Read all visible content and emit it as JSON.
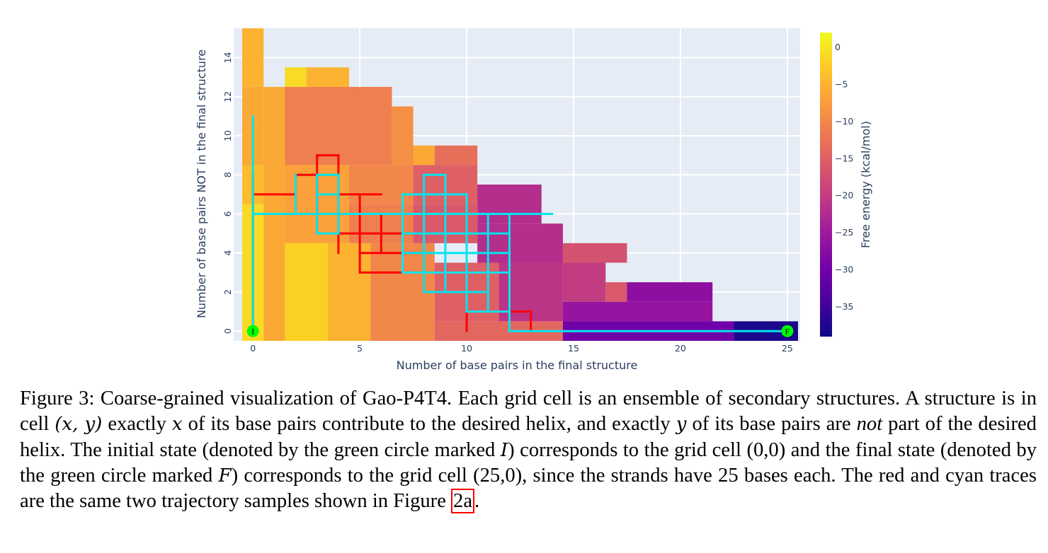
{
  "chart_data": {
    "type": "heatmap",
    "title": "",
    "xlabel": "Number of base pairs in the final structure",
    "ylabel": "Number of base pairs  NOT in the final structure",
    "colorbar_title": "Free energy (kcal/mol)",
    "xlim": [
      -0.9,
      25.6
    ],
    "ylim": [
      -0.5,
      15.5
    ],
    "xticks": [
      0,
      5,
      10,
      15,
      20,
      25
    ],
    "yticks": [
      0,
      2,
      4,
      6,
      8,
      10,
      12,
      14
    ],
    "zlim": [
      -39,
      2
    ],
    "colorbar_ticks": [
      0,
      -5,
      -10,
      -15,
      -20,
      -25,
      -30,
      -35
    ],
    "colorscale": "plasma",
    "cells": [
      {
        "x_range": [
          -0.5,
          0.5
        ],
        "y_range": [
          14.5,
          15.5
        ],
        "z": -5
      },
      {
        "x_range": [
          -0.5,
          0.5
        ],
        "y_range": [
          12.5,
          14.5
        ],
        "z": -5
      },
      {
        "x_range": [
          -0.5,
          0.5
        ],
        "y_range": [
          10.5,
          12.5
        ],
        "z": -6
      },
      {
        "x_range": [
          -0.5,
          0.5
        ],
        "y_range": [
          8.5,
          10.5
        ],
        "z": -6
      },
      {
        "x_range": [
          -0.5,
          0.5
        ],
        "y_range": [
          6.5,
          8.5
        ],
        "z": -4
      },
      {
        "x_range": [
          -0.5,
          0.5
        ],
        "y_range": [
          -0.5,
          6.5
        ],
        "z": -1
      },
      {
        "x_range": [
          0.5,
          1.5
        ],
        "y_range": [
          -0.5,
          12.5
        ],
        "z": -6
      },
      {
        "x_range": [
          1.5,
          2.5
        ],
        "y_range": [
          12.5,
          13.5
        ],
        "z": -1
      },
      {
        "x_range": [
          2.5,
          4.5
        ],
        "y_range": [
          12.5,
          13.5
        ],
        "z": -5
      },
      {
        "x_range": [
          1.5,
          6.5
        ],
        "y_range": [
          8.5,
          12.5
        ],
        "z": -11
      },
      {
        "x_range": [
          6.5,
          7.5
        ],
        "y_range": [
          8.5,
          11.5
        ],
        "z": -9
      },
      {
        "x_range": [
          7.5,
          8.5
        ],
        "y_range": [
          8.5,
          9.5
        ],
        "z": -6
      },
      {
        "x_range": [
          8.5,
          10.5
        ],
        "y_range": [
          8.5,
          9.5
        ],
        "z": -13
      },
      {
        "x_range": [
          1.5,
          4.5
        ],
        "y_range": [
          4.5,
          8.5
        ],
        "z": -7
      },
      {
        "x_range": [
          4.5,
          7.5
        ],
        "y_range": [
          6.5,
          8.5
        ],
        "z": -10
      },
      {
        "x_range": [
          7.5,
          10.5
        ],
        "y_range": [
          6.5,
          8.5
        ],
        "z": -15
      },
      {
        "x_range": [
          10.5,
          11.5
        ],
        "y_range": [
          6.5,
          7.5
        ],
        "z": -17
      },
      {
        "x_range": [
          10.5,
          13.5
        ],
        "y_range": [
          5.5,
          7.5
        ],
        "z": -22
      },
      {
        "x_range": [
          13.5,
          14.5
        ],
        "y_range": [
          4.5,
          5.5
        ],
        "z": -16
      },
      {
        "x_range": [
          4.5,
          7.5
        ],
        "y_range": [
          4.5,
          6.5
        ],
        "z": -11
      },
      {
        "x_range": [
          7.5,
          10.5
        ],
        "y_range": [
          4.5,
          6.5
        ],
        "z": -16
      },
      {
        "x_range": [
          10.5,
          14.5
        ],
        "y_range": [
          3.5,
          5.5
        ],
        "z": -22
      },
      {
        "x_range": [
          14.5,
          17.5
        ],
        "y_range": [
          3.5,
          4.5
        ],
        "z": -17
      },
      {
        "x_range": [
          1.5,
          3.5
        ],
        "y_range": [
          -0.5,
          4.5
        ],
        "z": -2
      },
      {
        "x_range": [
          3.5,
          5.5
        ],
        "y_range": [
          -0.5,
          4.5
        ],
        "z": -5
      },
      {
        "x_range": [
          5.5,
          8.5
        ],
        "y_range": [
          -0.5,
          4.5
        ],
        "z": -10
      },
      {
        "x_range": [
          8.5,
          11.5
        ],
        "y_range": [
          0.5,
          3.5
        ],
        "z": -15
      },
      {
        "x_range": [
          11.5,
          14.5
        ],
        "y_range": [
          0.5,
          3.5
        ],
        "z": -21
      },
      {
        "x_range": [
          14.5,
          16.5
        ],
        "y_range": [
          1.5,
          3.5
        ],
        "z": -20
      },
      {
        "x_range": [
          16.5,
          17.5
        ],
        "y_range": [
          1.5,
          2.5
        ],
        "z": -16
      },
      {
        "x_range": [
          17.5,
          21.5
        ],
        "y_range": [
          1.5,
          2.5
        ],
        "z": -27
      },
      {
        "x_range": [
          14.5,
          21.5
        ],
        "y_range": [
          0.5,
          1.5
        ],
        "z": -26
      },
      {
        "x_range": [
          8.5,
          14.5
        ],
        "y_range": [
          -0.5,
          0.5
        ],
        "z": -14
      },
      {
        "x_range": [
          14.5,
          22.5
        ],
        "y_range": [
          -0.5,
          0.5
        ],
        "z": -30
      },
      {
        "x_range": [
          22.5,
          25.5
        ],
        "y_range": [
          -0.5,
          0.5
        ],
        "z": -38
      }
    ],
    "traces": [
      {
        "color": "#ff0000",
        "segments": [
          [
            [
              0,
              0
            ],
            [
              0,
              8
            ]
          ],
          [
            [
              0,
              7
            ],
            [
              2,
              7
            ]
          ],
          [
            [
              2,
              8
            ],
            [
              2,
              6
            ]
          ],
          [
            [
              2,
              8
            ],
            [
              3,
              8
            ]
          ],
          [
            [
              3,
              9
            ],
            [
              3,
              6
            ]
          ],
          [
            [
              3,
              9
            ],
            [
              4,
              9
            ]
          ],
          [
            [
              4,
              9
            ],
            [
              4,
              4
            ]
          ],
          [
            [
              4,
              7
            ],
            [
              6,
              7
            ]
          ],
          [
            [
              4,
              5
            ],
            [
              8,
              5
            ]
          ],
          [
            [
              5,
              7
            ],
            [
              5,
              3
            ]
          ],
          [
            [
              5,
              3
            ],
            [
              7,
              3
            ]
          ],
          [
            [
              6,
              6
            ],
            [
              6,
              4
            ]
          ],
          [
            [
              5,
              4
            ],
            [
              8,
              4
            ]
          ],
          [
            [
              11,
              5
            ],
            [
              11,
              4
            ]
          ],
          [
            [
              10,
              1
            ],
            [
              10,
              0
            ]
          ],
          [
            [
              12,
              1
            ],
            [
              13,
              1
            ]
          ],
          [
            [
              13,
              1
            ],
            [
              13,
              0
            ]
          ]
        ]
      },
      {
        "color": "#00e5ee",
        "segments": [
          [
            [
              0,
              0
            ],
            [
              0,
              11
            ]
          ],
          [
            [
              0,
              6
            ],
            [
              14,
              6
            ]
          ],
          [
            [
              2,
              8
            ],
            [
              2,
              6
            ]
          ],
          [
            [
              3,
              8
            ],
            [
              4,
              8
            ]
          ],
          [
            [
              3,
              8
            ],
            [
              3,
              5
            ]
          ],
          [
            [
              4,
              8
            ],
            [
              4,
              5
            ]
          ],
          [
            [
              3,
              7
            ],
            [
              4,
              7
            ]
          ],
          [
            [
              3,
              5
            ],
            [
              4,
              5
            ]
          ],
          [
            [
              7,
              7
            ],
            [
              10,
              7
            ]
          ],
          [
            [
              7,
              5
            ],
            [
              12,
              5
            ]
          ],
          [
            [
              7,
              4
            ],
            [
              12,
              4
            ]
          ],
          [
            [
              7,
              3
            ],
            [
              12,
              3
            ]
          ],
          [
            [
              8,
              2
            ],
            [
              11,
              2
            ]
          ],
          [
            [
              10,
              1
            ],
            [
              12,
              1
            ]
          ],
          [
            [
              7,
              7
            ],
            [
              7,
              3
            ]
          ],
          [
            [
              8,
              8
            ],
            [
              8,
              2
            ]
          ],
          [
            [
              9,
              8
            ],
            [
              9,
              2
            ]
          ],
          [
            [
              10,
              7
            ],
            [
              10,
              1
            ]
          ],
          [
            [
              11,
              6
            ],
            [
              11,
              1
            ]
          ],
          [
            [
              12,
              6
            ],
            [
              12,
              0
            ]
          ],
          [
            [
              12,
              4
            ],
            [
              12,
              3
            ]
          ],
          [
            [
              8,
              8
            ],
            [
              9,
              8
            ]
          ],
          [
            [
              12,
              0
            ],
            [
              25,
              0
            ]
          ]
        ]
      }
    ],
    "markers": [
      {
        "label": "I",
        "x": 0,
        "y": 0,
        "color": "#00ff00"
      },
      {
        "label": "F",
        "x": 25,
        "y": 0,
        "color": "#00ff00"
      }
    ],
    "grid": true
  },
  "caption": {
    "p1": "Figure 3: Coarse-grained visualization of Gao-P4T4. Each grid cell is an ensemble of secondary structures. A structure is in cell ",
    "m1": "(x, y)",
    "p2": " exactly ",
    "m2": "x",
    "p3": " of its base pairs contribute to the desired helix, and exactly ",
    "m3": "y",
    "p4": " of its base pairs are ",
    "em1": "not",
    "p5": " part of the desired helix. The initial state (denoted by the green circle marked ",
    "m4": "I",
    "p6": ") corresponds to the grid cell (0,0) and the final state (denoted by the green circle marked ",
    "m5": "F",
    "p7": ") corresponds to the grid cell (25,0), since the strands have 25 bases each. The red and cyan traces are the same two trajectory samples shown in Figure ",
    "ref": "2a",
    "p8": "."
  }
}
